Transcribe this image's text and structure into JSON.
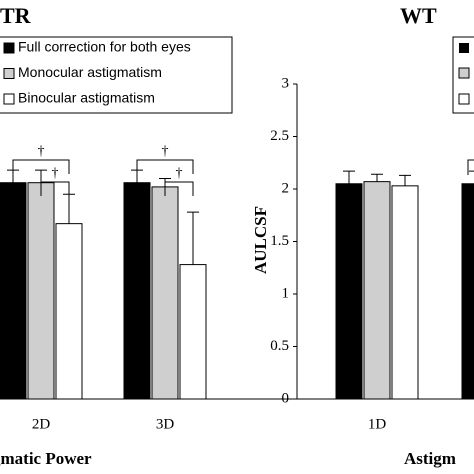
{
  "chart_data": [
    {
      "type": "bar",
      "title": "TR",
      "xlabel": "gmatic Power",
      "categories": [
        "2D",
        "3D"
      ],
      "series": [
        {
          "name": "Full correction for both eyes",
          "color": "#000000",
          "values": [
            2.06,
            2.06
          ],
          "errors": [
            0.12,
            0.12
          ]
        },
        {
          "name": "Monocular astigmatism",
          "color": "#cfcfcf",
          "values": [
            2.06,
            2.02
          ],
          "errors": [
            0.12,
            0.08
          ]
        },
        {
          "name": "Binocular astigmatism",
          "color": "#ffffff",
          "values": [
            1.67,
            1.28
          ],
          "errors": [
            0.28,
            0.5
          ]
        }
      ],
      "ylim": [
        0,
        3
      ],
      "annotations": [
        "†",
        "†",
        "†",
        "†"
      ]
    },
    {
      "type": "bar",
      "title": "WT",
      "ylabel": "AULCSF",
      "xlabel": "Astigm",
      "categories": [
        "1D",
        null
      ],
      "series": [
        {
          "color": "#000000",
          "values": [
            2.05,
            2.05
          ],
          "errors": [
            0.12,
            0.12
          ]
        },
        {
          "color": "#cfcfcf",
          "values": [
            2.07,
            null
          ],
          "errors": [
            0.07,
            null
          ]
        },
        {
          "color": "#ffffff",
          "values": [
            2.03,
            null
          ],
          "errors": [
            0.1,
            null
          ]
        }
      ],
      "ylim": [
        0,
        3
      ],
      "yticks": [
        0,
        0.5,
        1,
        1.5,
        2,
        2.5,
        3
      ]
    }
  ]
}
